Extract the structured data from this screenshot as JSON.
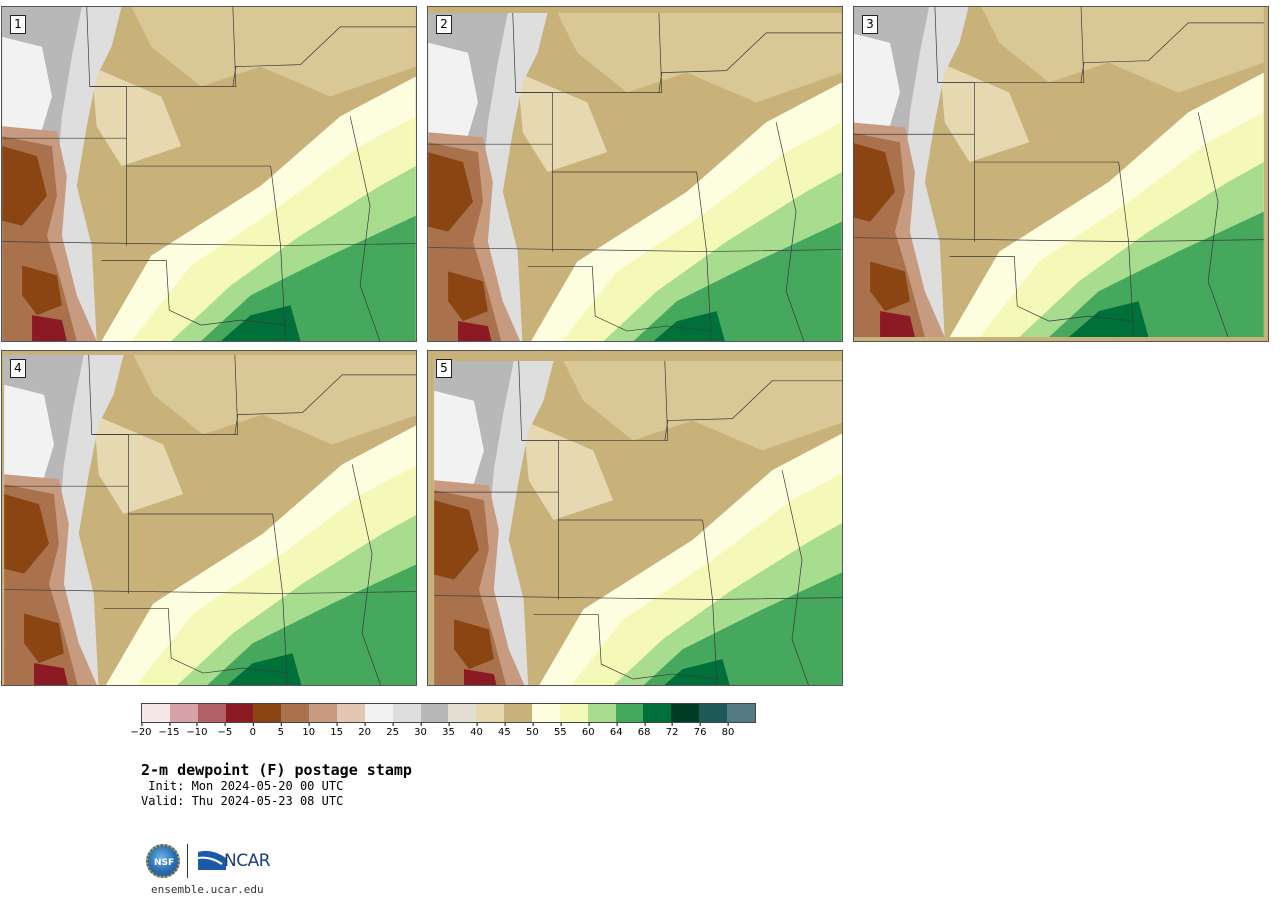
{
  "panels": [
    {
      "label": "1"
    },
    {
      "label": "2"
    },
    {
      "label": "3"
    },
    {
      "label": "4"
    },
    {
      "label": "5"
    }
  ],
  "colorbar": {
    "colors": [
      "#f6e8ea",
      "#d8a3a8",
      "#b35f68",
      "#8b1a24",
      "#8a4512",
      "#a9724d",
      "#c69b80",
      "#e3c6b3",
      "#f2f2f2",
      "#dedede",
      "#b8b8b8",
      "#e3e0d3",
      "#e6d8b0",
      "#c9b27a",
      "#fdfde0",
      "#f4f9b8",
      "#a8dc8e",
      "#45a85d",
      "#00703a",
      "#003c24",
      "#1e5957",
      "#527a80"
    ],
    "tick_labels": [
      "−20",
      "−15",
      "−10",
      "−5",
      "0",
      "5",
      "10",
      "15",
      "20",
      "25",
      "30",
      "35",
      "40",
      "45",
      "50",
      "55",
      "60",
      "64",
      "68",
      "72",
      "76",
      "80"
    ]
  },
  "title": "2-m dewpoint (F) postage stamp",
  "init_line": " Init: Mon 2024-05-20 00 UTC",
  "valid_line": "Valid: Thu 2024-05-23 08 UTC",
  "logos": {
    "nsf": "NSF",
    "ncar": "NCAR"
  },
  "url": "ensemble.ucar.edu"
}
